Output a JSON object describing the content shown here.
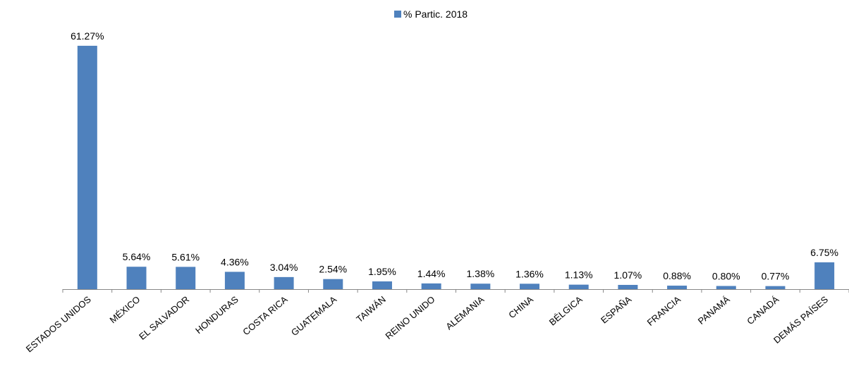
{
  "chart_data": {
    "type": "bar",
    "title": "",
    "xlabel": "",
    "ylabel": "",
    "legend_position": "top",
    "grid": false,
    "ylim": [
      0,
      68
    ],
    "categories": [
      "ESTADOS UNIDOS",
      "MÉXICO",
      "EL SALVADOR",
      "HONDURAS",
      "COSTA RICA",
      "GUATEMALA",
      "TAIWÁN",
      "REINO UNIDO",
      "ALEMANIA",
      "CHINA",
      "BÉLGICA",
      "ESPAÑA",
      "FRANCIA",
      "PANAMÁ",
      "CANADÁ",
      "DEMÁS PAÍSES"
    ],
    "series": [
      {
        "name": "% Partic. 2018",
        "color": "#4f81bd",
        "values": [
          61.27,
          5.64,
          5.61,
          4.36,
          3.04,
          2.54,
          1.95,
          1.44,
          1.38,
          1.36,
          1.13,
          1.07,
          0.88,
          0.8,
          0.77,
          6.75
        ],
        "labels": [
          "61.27%",
          "5.64%",
          "5.61%",
          "4.36%",
          "3.04%",
          "2.54%",
          "1.95%",
          "1.44%",
          "1.38%",
          "1.36%",
          "1.13%",
          "1.07%",
          "0.88%",
          "0.80%",
          "0.77%",
          "6.75%"
        ]
      }
    ]
  }
}
